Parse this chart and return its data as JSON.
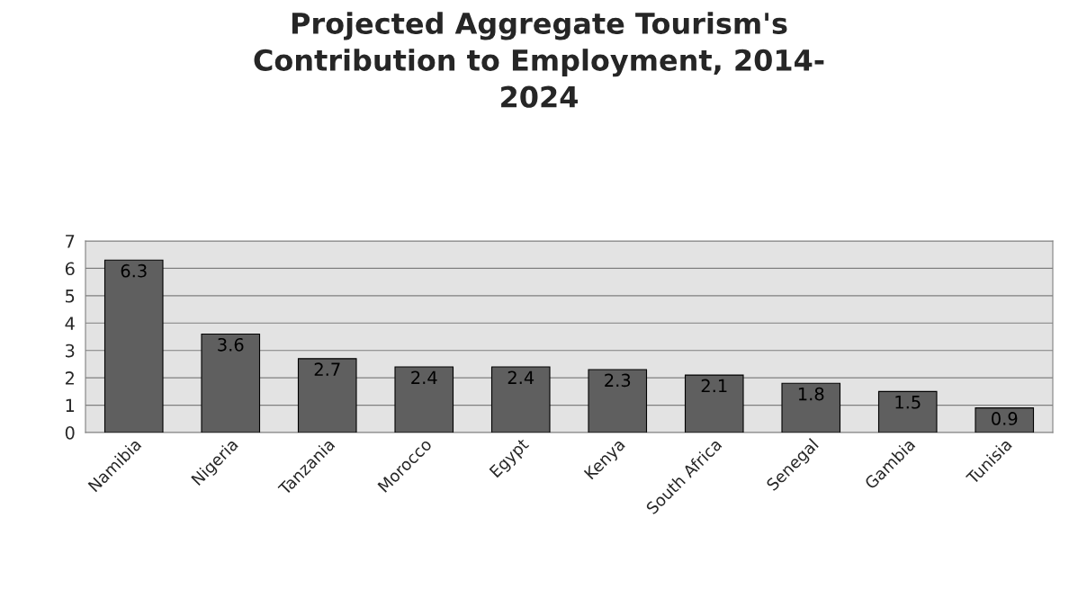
{
  "chart_data": {
    "type": "bar",
    "title": "Projected Aggregate Tourism's\nContribution to Employment, 2014-\n2024",
    "categories": [
      "Namibia",
      "Nigeria",
      "Tanzania",
      "Morocco",
      "Egypt",
      "Kenya",
      "South Africa",
      "Senegal",
      "Gambia",
      "Tunisia"
    ],
    "values": [
      6.3,
      3.6,
      2.7,
      2.4,
      2.4,
      2.3,
      2.1,
      1.8,
      1.5,
      0.9
    ],
    "color": "#5f5f5f",
    "ylim": [
      0,
      7
    ],
    "yticks": [
      0,
      1,
      2,
      3,
      4,
      5,
      6,
      7
    ],
    "grid": "y",
    "data_labels": true
  }
}
